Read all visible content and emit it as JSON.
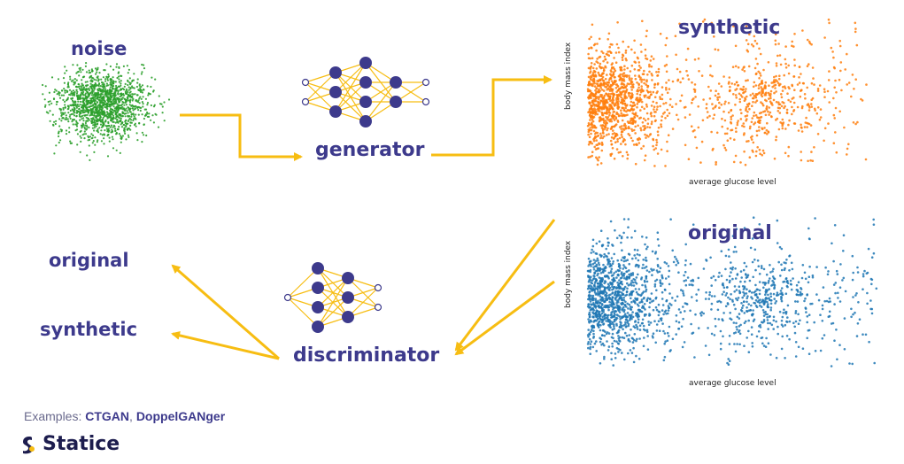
{
  "labels": {
    "noise": "noise",
    "generator": "generator",
    "discriminator": "discriminator",
    "synthetic_plot_title": "synthetic",
    "original_plot_title": "original",
    "output_original": "original",
    "output_synthetic": "synthetic"
  },
  "axes": {
    "xlabel": "average glucose level",
    "ylabel": "body mass index"
  },
  "footer": {
    "examples_prefix": "Examples: ",
    "example_1": "CTGAN",
    "separator": ", ",
    "example_2": "DoppelGANger",
    "brand": "Statice"
  },
  "colors": {
    "label": "#3d3a8c",
    "arrow": "#f7bd12",
    "noise": "#2ca02c",
    "synthetic": "#ff7f0e",
    "original": "#1f77b4",
    "node": "#3d3a8c",
    "edge": "#f7bd12"
  }
}
